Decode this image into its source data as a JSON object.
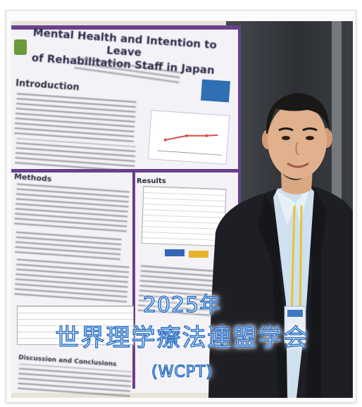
{
  "caption": {
    "year": "2025年",
    "title": "世界理学療法連盟学会",
    "abbr": "(WCPT)"
  },
  "poster": {
    "title_line1": "Mental Health and Intention to Leave",
    "title_line2": "of Rehabilitation Staff in Japan",
    "section_intro": "Introduction",
    "section_methods": "Methods",
    "section_results": "Results",
    "section_discussion": "Discussion and Conclusions",
    "accent_color": "#6a3f8f"
  }
}
